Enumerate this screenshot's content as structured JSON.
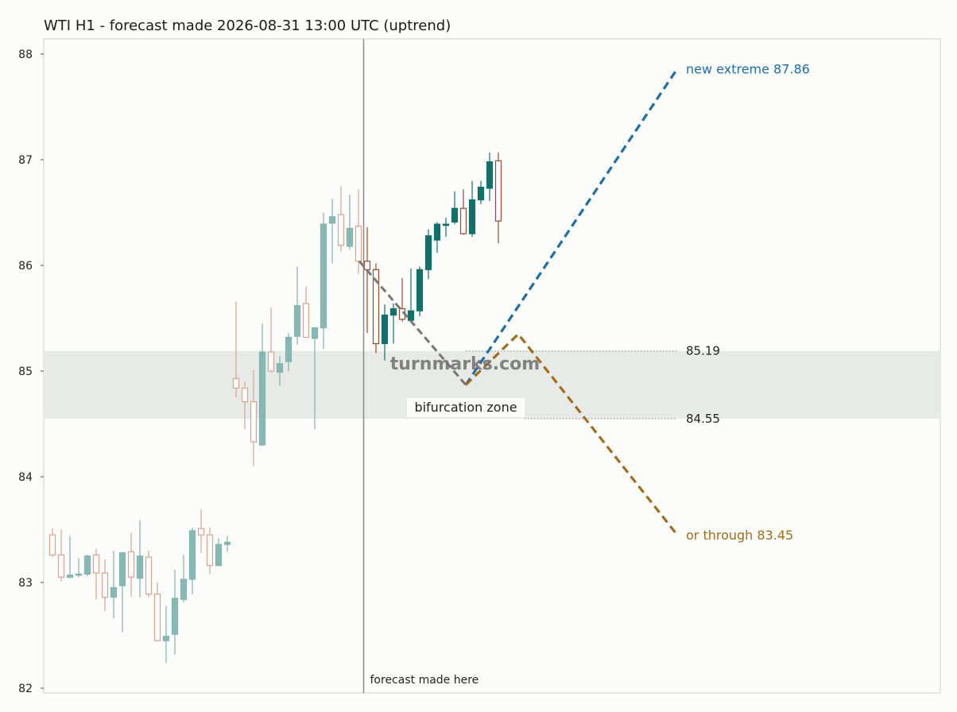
{
  "chart_data": {
    "type": "candlestick",
    "title": "WTI H1 - forecast made 2026-08-31 13:00 UTC (uptrend)",
    "ylim": [
      81.98,
      88.1
    ],
    "y_ticks": [
      82,
      83,
      84,
      85,
      86,
      87,
      88
    ],
    "grid": false,
    "colors": {
      "up": "#127068",
      "down": "#9a4a2c",
      "past_up": "#7fb4ae",
      "past_down": "#d6a492",
      "bullish_path": "#1f6ea5",
      "bearish_path": "#a06d1f",
      "connector": "#777777",
      "zone": "#e8eae7",
      "forecast_line": "#8a8a8a"
    },
    "candles_before_forecast": [
      {
        "o": 83.45,
        "h": 83.51,
        "l": 83.24,
        "c": 83.26
      },
      {
        "o": 83.26,
        "h": 83.5,
        "l": 83.01,
        "c": 83.05
      },
      {
        "o": 83.05,
        "h": 83.44,
        "l": 83.04,
        "c": 83.07
      },
      {
        "o": 83.07,
        "h": 83.23,
        "l": 83.05,
        "c": 83.08
      },
      {
        "o": 83.08,
        "h": 83.26,
        "l": 83.06,
        "c": 83.25
      },
      {
        "o": 83.26,
        "h": 83.32,
        "l": 82.84,
        "c": 83.09
      },
      {
        "o": 83.09,
        "h": 83.22,
        "l": 82.73,
        "c": 82.86
      },
      {
        "o": 82.86,
        "h": 83.3,
        "l": 82.66,
        "c": 82.95
      },
      {
        "o": 82.97,
        "h": 83.29,
        "l": 82.53,
        "c": 83.28
      },
      {
        "o": 83.29,
        "h": 83.47,
        "l": 82.87,
        "c": 83.05
      },
      {
        "o": 83.04,
        "h": 83.59,
        "l": 82.86,
        "c": 83.25
      },
      {
        "o": 83.24,
        "h": 83.3,
        "l": 82.86,
        "c": 82.89
      },
      {
        "o": 82.89,
        "h": 83.0,
        "l": 82.44,
        "c": 82.45
      },
      {
        "o": 82.45,
        "h": 82.78,
        "l": 82.24,
        "c": 82.49
      },
      {
        "o": 82.51,
        "h": 83.12,
        "l": 82.32,
        "c": 82.85
      },
      {
        "o": 82.84,
        "h": 83.26,
        "l": 82.81,
        "c": 83.03
      },
      {
        "o": 83.03,
        "h": 83.52,
        "l": 82.89,
        "c": 83.49
      },
      {
        "o": 83.51,
        "h": 83.69,
        "l": 83.28,
        "c": 83.45
      },
      {
        "o": 83.45,
        "h": 83.52,
        "l": 83.08,
        "c": 83.16
      },
      {
        "o": 83.16,
        "h": 83.42,
        "l": 83.16,
        "c": 83.36
      },
      {
        "o": 83.36,
        "h": 83.44,
        "l": 83.29,
        "c": 83.38
      },
      {
        "o": 84.93,
        "h": 85.66,
        "l": 84.75,
        "c": 84.84
      },
      {
        "o": 84.84,
        "h": 84.9,
        "l": 84.45,
        "c": 84.71
      },
      {
        "o": 84.71,
        "h": 85.01,
        "l": 84.1,
        "c": 84.33
      },
      {
        "o": 84.3,
        "h": 85.45,
        "l": 84.3,
        "c": 85.18
      },
      {
        "o": 85.18,
        "h": 85.6,
        "l": 84.99,
        "c": 85.0
      },
      {
        "o": 84.99,
        "h": 85.14,
        "l": 84.86,
        "c": 85.07
      },
      {
        "o": 85.09,
        "h": 85.36,
        "l": 85.0,
        "c": 85.32
      },
      {
        "o": 85.33,
        "h": 85.99,
        "l": 85.25,
        "c": 85.62
      },
      {
        "o": 85.64,
        "h": 85.8,
        "l": 85.32,
        "c": 85.32
      },
      {
        "o": 85.31,
        "h": 85.41,
        "l": 84.45,
        "c": 85.41
      },
      {
        "o": 85.41,
        "h": 86.5,
        "l": 85.21,
        "c": 86.39
      },
      {
        "o": 86.4,
        "h": 86.63,
        "l": 86.02,
        "c": 86.46
      },
      {
        "o": 86.48,
        "h": 86.75,
        "l": 86.13,
        "c": 86.19
      },
      {
        "o": 86.18,
        "h": 86.67,
        "l": 86.15,
        "c": 86.35
      },
      {
        "o": 86.37,
        "h": 86.72,
        "l": 85.92,
        "c": 86.04
      }
    ],
    "candles_after_forecast": [
      {
        "o": 86.04,
        "h": 86.36,
        "l": 85.36,
        "c": 85.96
      },
      {
        "o": 85.96,
        "h": 86.02,
        "l": 85.17,
        "c": 85.26
      },
      {
        "o": 85.26,
        "h": 85.63,
        "l": 85.1,
        "c": 85.53
      },
      {
        "o": 85.53,
        "h": 85.64,
        "l": 85.26,
        "c": 85.59
      },
      {
        "o": 85.59,
        "h": 85.88,
        "l": 85.47,
        "c": 85.49
      },
      {
        "o": 85.48,
        "h": 85.97,
        "l": 85.48,
        "c": 85.57
      },
      {
        "o": 85.57,
        "h": 85.99,
        "l": 85.52,
        "c": 85.96
      },
      {
        "o": 85.96,
        "h": 86.34,
        "l": 85.87,
        "c": 86.28
      },
      {
        "o": 86.24,
        "h": 86.41,
        "l": 86.12,
        "c": 86.39
      },
      {
        "o": 86.38,
        "h": 86.45,
        "l": 86.27,
        "c": 86.39
      },
      {
        "o": 86.41,
        "h": 86.7,
        "l": 86.39,
        "c": 86.54
      },
      {
        "o": 86.54,
        "h": 86.72,
        "l": 86.29,
        "c": 86.3
      },
      {
        "o": 86.3,
        "h": 86.8,
        "l": 86.27,
        "c": 86.62
      },
      {
        "o": 86.62,
        "h": 86.8,
        "l": 86.58,
        "c": 86.74
      },
      {
        "o": 86.73,
        "h": 87.07,
        "l": 86.61,
        "c": 86.98
      },
      {
        "o": 86.99,
        "h": 87.07,
        "l": 86.21,
        "c": 86.42
      }
    ],
    "bifurcation_zone": {
      "upper": 85.19,
      "lower": 84.55,
      "label": "bifurcation zone"
    },
    "level_labels": [
      "85.19",
      "84.55"
    ],
    "forecast_label": "forecast made here",
    "connector_path": [
      86.04,
      84.87
    ],
    "bullish_path": {
      "label": "new extreme 87.86",
      "start": 84.87,
      "end": 87.86
    },
    "bearish_path": {
      "label": "or through 83.45",
      "start": 84.87,
      "peak": 85.35,
      "end": 83.45
    },
    "watermark": "turnmarks.com"
  }
}
